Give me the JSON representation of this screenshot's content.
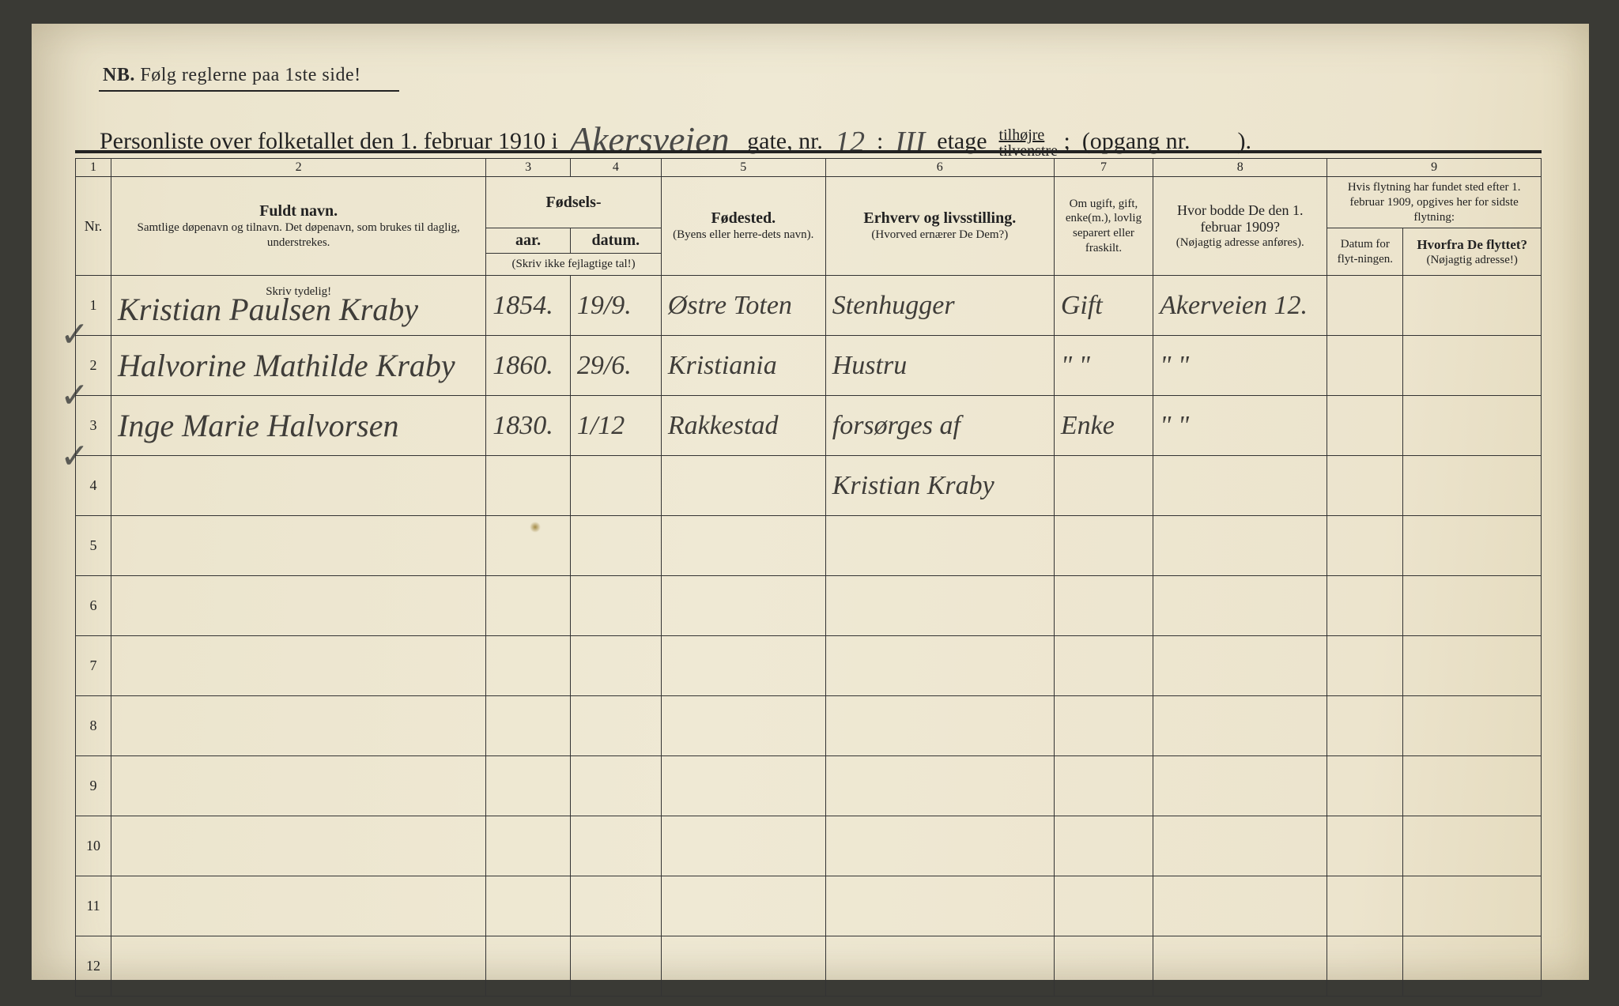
{
  "nb_prefix": "NB.",
  "nb_text": "Følg reglerne paa 1ste side!",
  "title": {
    "prefix": "Personliste over folketallet den 1. februar 1910 i",
    "street_hw": "Akersveien",
    "gate_label": "gate, nr.",
    "nr_hw": "12",
    "colon": ":",
    "etage_hw": "III",
    "etage_label": "etage",
    "tilhojre": "tilhøjre",
    "tilvenstre": "tilvenstre",
    "semicolon": ";",
    "opgang": "(opgang nr.",
    "close": ")."
  },
  "colnums": [
    "1",
    "2",
    "3",
    "4",
    "5",
    "6",
    "7",
    "8",
    "9"
  ],
  "headers": {
    "nr": "Nr.",
    "fuldt_navn": "Fuldt navn.",
    "fuldt_sub": "Samtlige døpenavn og tilnavn. Det døpenavn, som brukes til daglig, understrekes.",
    "fodsels": "Fødsels-",
    "aar": "aar.",
    "datum": "datum.",
    "skriv_ikke": "(Skriv ikke fejlagtige tal!)",
    "fodested": "Fødested.",
    "fodested_sub": "(Byens eller herre-dets navn).",
    "erhverv": "Erhverv og livsstilling.",
    "erhverv_sub": "(Hvorved ernærer De Dem?)",
    "omugift": "Om ugift, gift, enke(m.), lovlig separert eller fraskilt.",
    "hvor_bodde": "Hvor bodde De den 1. februar 1909?",
    "hvor_bodde_sub": "(Nøjagtig adresse anføres).",
    "hvis_flyt": "Hvis flytning har fundet sted efter 1. februar 1909, opgives her for sidste flytning:",
    "datum_flyt": "Datum for flyt-ningen.",
    "hvorfra": "Hvorfra De flyttet?",
    "hvorfra_sub": "(Nøjagtig adresse!)",
    "skriv_tydelig": "Skriv tydelig!"
  },
  "rows": [
    {
      "nr": "1",
      "navn": "Kristian Paulsen Kraby",
      "aar": "1854.",
      "datum": "19/9.",
      "fodested": "Østre Toten",
      "erhverv": "Stenhugger",
      "status": "Gift",
      "bodde": "Akerveien 12.",
      "flyt_dat": "",
      "flyt_fra": ""
    },
    {
      "nr": "2",
      "navn": "Halvorine Mathilde Kraby",
      "aar": "1860.",
      "datum": "29/6.",
      "fodested": "Kristiania",
      "erhverv": "Hustru",
      "status": "\" \"",
      "bodde": "\"        \"",
      "flyt_dat": "",
      "flyt_fra": ""
    },
    {
      "nr": "3",
      "navn": "Inge Marie Halvorsen",
      "aar": "1830.",
      "datum": "1/12",
      "fodested": "Rakkestad",
      "erhverv": "forsørges af",
      "status": "Enke",
      "bodde": "\"        \"",
      "flyt_dat": "",
      "flyt_fra": ""
    },
    {
      "nr": "4",
      "navn": "",
      "aar": "",
      "datum": "",
      "fodested": "",
      "erhverv": "Kristian Kraby",
      "status": "",
      "bodde": "",
      "flyt_dat": "",
      "flyt_fra": ""
    },
    {
      "nr": "5",
      "navn": "",
      "aar": "",
      "datum": "",
      "fodested": "",
      "erhverv": "",
      "status": "",
      "bodde": "",
      "flyt_dat": "",
      "flyt_fra": ""
    },
    {
      "nr": "6",
      "navn": "",
      "aar": "",
      "datum": "",
      "fodested": "",
      "erhverv": "",
      "status": "",
      "bodde": "",
      "flyt_dat": "",
      "flyt_fra": ""
    },
    {
      "nr": "7",
      "navn": "",
      "aar": "",
      "datum": "",
      "fodested": "",
      "erhverv": "",
      "status": "",
      "bodde": "",
      "flyt_dat": "",
      "flyt_fra": ""
    },
    {
      "nr": "8",
      "navn": "",
      "aar": "",
      "datum": "",
      "fodested": "",
      "erhverv": "",
      "status": "",
      "bodde": "",
      "flyt_dat": "",
      "flyt_fra": ""
    },
    {
      "nr": "9",
      "navn": "",
      "aar": "",
      "datum": "",
      "fodested": "",
      "erhverv": "",
      "status": "",
      "bodde": "",
      "flyt_dat": "",
      "flyt_fra": ""
    },
    {
      "nr": "10",
      "navn": "",
      "aar": "",
      "datum": "",
      "fodested": "",
      "erhverv": "",
      "status": "",
      "bodde": "",
      "flyt_dat": "",
      "flyt_fra": ""
    },
    {
      "nr": "11",
      "navn": "",
      "aar": "",
      "datum": "",
      "fodested": "",
      "erhverv": "",
      "status": "",
      "bodde": "",
      "flyt_dat": "",
      "flyt_fra": ""
    },
    {
      "nr": "12",
      "navn": "",
      "aar": "",
      "datum": "",
      "fodested": "",
      "erhverv": "",
      "status": "",
      "bodde": "",
      "flyt_dat": "",
      "flyt_fra": ""
    }
  ],
  "colors": {
    "paper": "#ece5ce",
    "ink": "#222222",
    "handwriting": "#3f3d39"
  }
}
